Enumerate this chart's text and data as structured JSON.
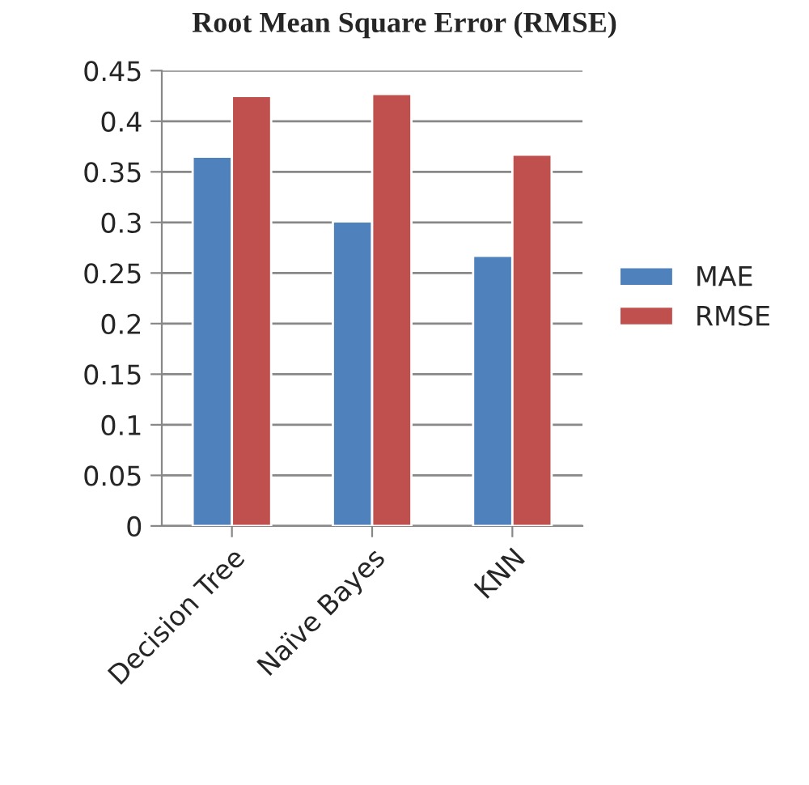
{
  "chart_data": {
    "type": "bar",
    "title": "Root Mean Square Error (RMSE)",
    "categories": [
      "Decision Tree",
      "Naïve Bayes",
      "KNN"
    ],
    "series": [
      {
        "name": "MAE",
        "color": "#4f81bd",
        "values": [
          0.365,
          0.301,
          0.267
        ]
      },
      {
        "name": "RMSE",
        "color": "#c0504d",
        "values": [
          0.425,
          0.427,
          0.367
        ]
      }
    ],
    "ylim": [
      0,
      0.45
    ],
    "yticks": [
      {
        "value": 0,
        "label": "0"
      },
      0.05,
      0.1,
      0.15,
      0.2,
      0.25,
      0.3,
      0.35,
      0.4,
      0.45
    ],
    "grid": "y",
    "legend": "right"
  }
}
